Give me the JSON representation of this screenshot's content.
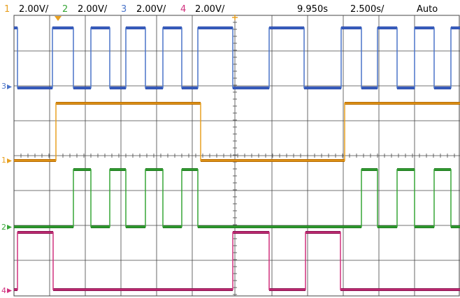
{
  "header": {
    "channels": [
      {
        "num": "1",
        "scale": "2.00V/",
        "color": "#e8a020"
      },
      {
        "num": "2",
        "scale": "2.00V/",
        "color": "#37a637"
      },
      {
        "num": "3",
        "scale": "2.00V/",
        "color": "#4a74c9"
      },
      {
        "num": "4",
        "scale": "2.00V/",
        "color": "#d0307d"
      }
    ],
    "time_offset": "9.950s",
    "time_scale": "2.500s/",
    "trigger_mode": "Auto"
  },
  "markers": {
    "ch3": "3",
    "ch1": "1",
    "ch2": "2",
    "ch4": "4"
  },
  "colors": {
    "ch1": "#e8a020",
    "ch1_fill": "#b86a00",
    "ch2": "#37a637",
    "ch2_fill": "#1e7a1e",
    "ch3": "#4a74c9",
    "ch3_fill": "#1f3ea8",
    "ch4": "#d0307d",
    "ch4_fill": "#8b1550",
    "grid": "#444444"
  },
  "traces": {
    "ch3": {
      "transitions": [
        25,
        75,
        105,
        130,
        157,
        180,
        208,
        233,
        260,
        283,
        333,
        385,
        435,
        488,
        517,
        540,
        568,
        593,
        621,
        645
      ],
      "start_high": true
    },
    "ch1": {
      "transitions": [
        80,
        287,
        493
      ],
      "start_high": false
    },
    "ch2": {
      "transitions": [
        105,
        130,
        157,
        180,
        208,
        233,
        260,
        283,
        517,
        540,
        568,
        593,
        621,
        645
      ],
      "start_high": false
    },
    "ch4": {
      "transitions": [
        25,
        76,
        333,
        385,
        437,
        487
      ],
      "start_high": false
    }
  }
}
